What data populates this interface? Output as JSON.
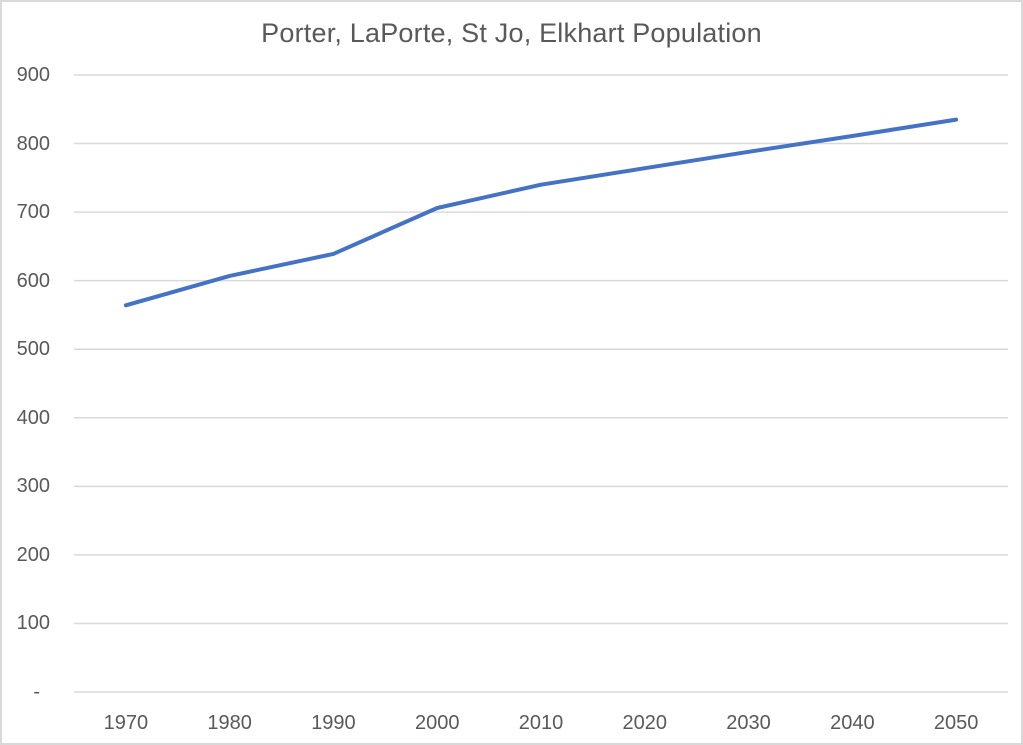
{
  "chart_data": {
    "type": "line",
    "title": "Porter, LaPorte, St Jo, Elkhart Population",
    "x": [
      1970,
      1980,
      1990,
      2000,
      2010,
      2020,
      2030,
      2040,
      2050
    ],
    "xtick_labels": [
      "1970",
      "1980",
      "1990",
      "2000",
      "2010",
      "2020",
      "2030",
      "2040",
      "2050"
    ],
    "series": [
      {
        "name": "Porter, LaPorte, St Jo, Elkhart Population",
        "values": [
          564,
          607,
          639,
          706,
          740,
          764,
          788,
          811,
          835
        ]
      }
    ],
    "xlabel": "",
    "ylabel": "",
    "ylim": [
      0,
      900
    ],
    "ytick_interval": 100,
    "ytick_labels": [
      "-",
      "100",
      "200",
      "300",
      "400",
      "500",
      "600",
      "700",
      "800",
      "900"
    ],
    "grid": "horizontal",
    "legend_position": "none",
    "colors": {
      "line": "#4472C4",
      "gridline": "#D9D9D9",
      "text": "#595959",
      "title_text": "#595959",
      "background": "#FFFFFF",
      "border": "#D9D9D9"
    }
  }
}
